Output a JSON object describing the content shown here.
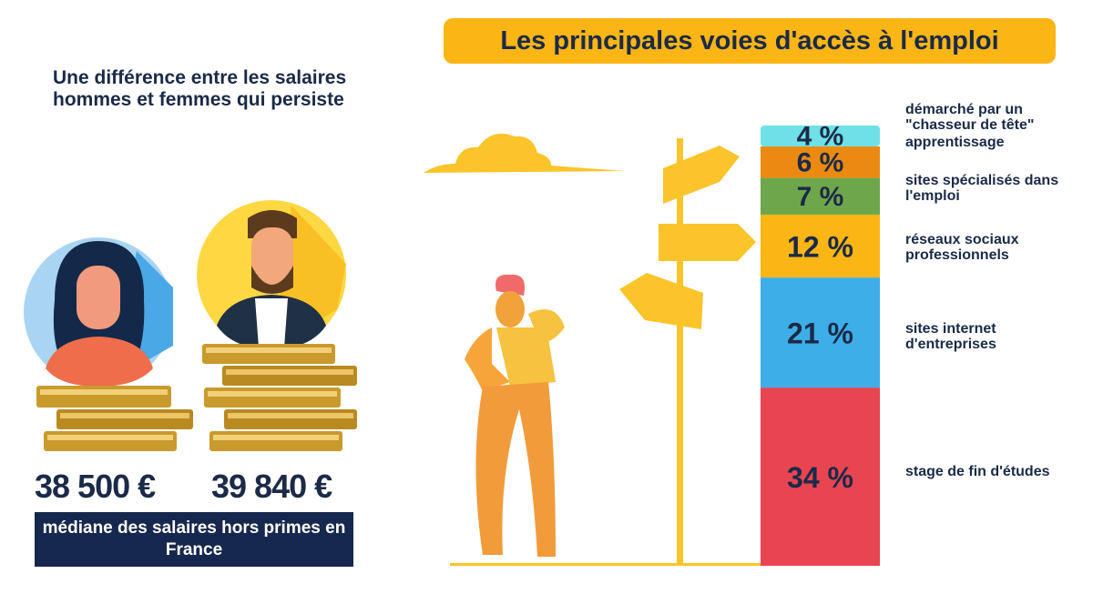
{
  "left": {
    "title": "Une différence entre les salaires hommes et femmes qui persiste",
    "salary_women": "38 500 €",
    "salary_men": "39 840 €",
    "caption": "médiane des salaires hors primes en France"
  },
  "right": {
    "title": "Les principales voies d'accès à l'emploi"
  },
  "colors": {
    "navy": "#16284d",
    "title_bg": "#fbb515"
  },
  "chart_data": {
    "type": "bar",
    "stacked": true,
    "title": "Les principales voies d'accès à l'emploi",
    "unit": "%",
    "segments": [
      {
        "label": "stage de fin d'études",
        "value": 34,
        "display": "34 %",
        "color": "#e84452"
      },
      {
        "label": "sites internet d'entreprises",
        "value": 21,
        "display": "21 %",
        "color": "#3daee8"
      },
      {
        "label": "réseaux sociaux professionnels",
        "value": 12,
        "display": "12 %",
        "color": "#fbb515"
      },
      {
        "label": "sites spécialisés dans l'emploi",
        "value": 7,
        "display": "7 %",
        "color": "#6ea64c"
      },
      {
        "label": "apprentissage",
        "value": 6,
        "display": "6 %",
        "color": "#ea8a10"
      },
      {
        "label": "démarché par un \"chasseur de tête\"",
        "value": 4,
        "display": "4 %",
        "color": "#6ee0e6"
      }
    ]
  }
}
